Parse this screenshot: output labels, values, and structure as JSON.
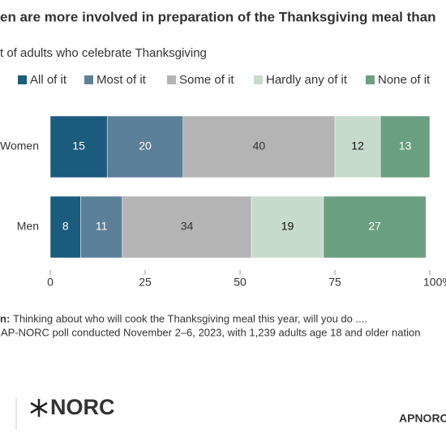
{
  "chart_data": {
    "type": "stacked_bar_horizontal",
    "title": "en are more involved in preparation of the Thanksgiving meal than",
    "subtitle": "t of adults who celebrate Thanksgiving",
    "categories": [
      "Women",
      "Men"
    ],
    "series": [
      {
        "name": "All of it",
        "color": "#1b5b7d",
        "label_color": "#ffffff",
        "values": [
          15,
          8
        ]
      },
      {
        "name": "Most of it",
        "color": "#5d8099",
        "label_color": "#ffffff",
        "values": [
          20,
          11
        ]
      },
      {
        "name": "Some of it",
        "color": "#b4b4b4",
        "label_color": "#333333",
        "values": [
          40,
          34
        ]
      },
      {
        "name": "Hardly any of it",
        "color": "#c6dacd",
        "label_color": "#111111",
        "values": [
          12,
          19
        ]
      },
      {
        "name": "None of it",
        "color": "#6b9f81",
        "label_color": "#ffffff",
        "values": [
          13,
          27
        ]
      }
    ],
    "xlim": [
      0,
      100
    ],
    "xticks": [
      0,
      25,
      50,
      75,
      {
        "value": 100,
        "label": "100%"
      }
    ],
    "note_label": "n:",
    "note": "Thinking about who will cook the Thanksgiving meal this year, will you do ....",
    "source": "AP-NORC poll conducted November 2–6, 2023, with 1,239  adults age 18 and older nation",
    "logo": "NORC",
    "brand": "APNORC"
  }
}
